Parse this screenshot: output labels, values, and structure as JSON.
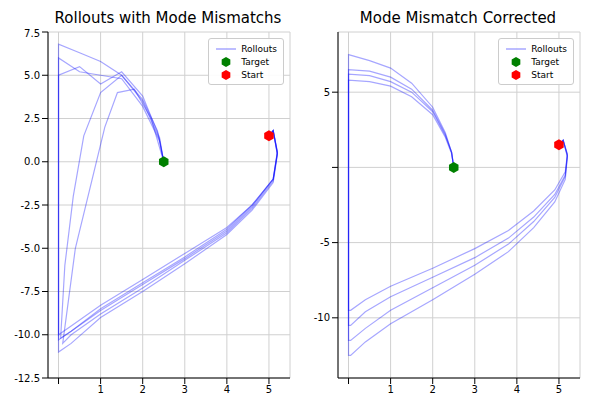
{
  "chart_data": [
    {
      "type": "line",
      "title": "Rollouts with Mode Mismatchs",
      "xlim": [
        -0.25,
        5.5
      ],
      "xticks": [
        0,
        1,
        2,
        3,
        4,
        5
      ],
      "ylim": [
        -12.5,
        7.5
      ],
      "yticks": [
        {
          "value": -12.5,
          "label": "-12.5"
        },
        {
          "value": -10,
          "label": "-10.0"
        },
        {
          "value": -7.5,
          "label": "-7.5"
        },
        {
          "value": -5,
          "label": "-5.0"
        },
        {
          "value": -2.5,
          "label": "-2.5"
        },
        {
          "value": 0,
          "label": "0.0"
        },
        {
          "value": 2.5,
          "label": "2.5"
        },
        {
          "value": 5,
          "label": "5.0"
        },
        {
          "value": 7.5,
          "label": "7.5"
        }
      ],
      "grid": true,
      "legend": "upper right",
      "series": [
        {
          "name": "Rollouts",
          "type": "line",
          "color": "#0000ff",
          "rollouts": [
            {
              "x": [
                5,
                5.1,
                5.2,
                5.1,
                4.6,
                4,
                3,
                2,
                1,
                0.3,
                0,
                0,
                0,
                0,
                0.5,
                1,
                1.5,
                2,
                2.35,
                2.5
              ],
              "values": [
                1.5,
                1.8,
                0.5,
                -1,
                -2.5,
                -3.8,
                -5.3,
                -6.8,
                -8.3,
                -9.5,
                -10,
                -3,
                3,
                6.8,
                6.3,
                5.8,
                5,
                3.6,
                1.8,
                0
              ]
            },
            {
              "x": [
                5,
                5.1,
                5.2,
                5.1,
                4.6,
                4,
                3,
                2,
                1,
                0.3,
                0,
                0,
                0.5,
                1,
                1.5,
                2,
                2.4,
                2.5
              ],
              "values": [
                1.5,
                1.8,
                0.4,
                -1.2,
                -2.8,
                -4.2,
                -5.9,
                -7.5,
                -9,
                -10.5,
                -11,
                6,
                5.2,
                5,
                4.8,
                3.2,
                1.2,
                0
              ]
            },
            {
              "x": [
                5,
                5.1,
                5.2,
                5.1,
                4.6,
                4,
                3,
                2,
                1,
                0.3,
                0.05,
                0.15,
                0.35,
                0.6,
                1,
                1.5,
                2,
                2.4,
                2.5
              ],
              "values": [
                1.5,
                1.8,
                0.6,
                -1,
                -2.6,
                -4,
                -5.6,
                -7.1,
                -8.6,
                -9.8,
                -10.2,
                -6,
                -2,
                1.5,
                4,
                5,
                3.5,
                1.3,
                0
              ]
            },
            {
              "x": [
                5,
                5.1,
                5.2,
                5.1,
                4.6,
                4,
                3,
                2,
                1,
                0.3,
                0.1,
                0.4,
                0.8,
                1.1,
                1.4,
                1.8,
                2.2,
                2.5
              ],
              "values": [
                1.5,
                1.8,
                0.5,
                -1.1,
                -2.7,
                -4.1,
                -5.7,
                -7.3,
                -8.8,
                -10,
                -10.5,
                -5,
                -1,
                2,
                4,
                4.2,
                2.5,
                0
              ]
            },
            {
              "x": [
                5,
                5.1,
                5.2,
                5.1,
                4.6,
                4,
                3,
                2,
                1,
                0.3,
                0,
                0,
                0.5,
                1,
                1.5,
                2,
                2.4,
                2.5
              ],
              "values": [
                1.5,
                1.8,
                0.5,
                -1,
                -2.5,
                -3.9,
                -5.5,
                -7,
                -8.5,
                -9.8,
                -10.3,
                5,
                5.5,
                4.5,
                5.2,
                3.8,
                1.4,
                0
              ]
            }
          ]
        },
        {
          "name": "Target",
          "type": "scatter",
          "marker": "hexagon",
          "color": "#008000",
          "x": [
            2.5
          ],
          "values": [
            0
          ]
        },
        {
          "name": "Start",
          "type": "scatter",
          "marker": "hexagon",
          "color": "#ff0000",
          "x": [
            5
          ],
          "values": [
            1.5
          ]
        }
      ]
    },
    {
      "type": "line",
      "title": "Mode Mismatch Corrected",
      "xlim": [
        -0.25,
        5.5
      ],
      "xticks": [
        0,
        1,
        2,
        3,
        4,
        5
      ],
      "ylim": [
        -14,
        9
      ],
      "yticks": [
        -10,
        -5,
        0,
        5
      ],
      "grid": true,
      "legend": "upper right",
      "series": [
        {
          "name": "Rollouts",
          "type": "line",
          "color": "#0000ff",
          "rollouts": [
            {
              "x": [
                5,
                5.1,
                5.2,
                5.15,
                4.9,
                4.4,
                3.8,
                3,
                2,
                1,
                0.4,
                0.05,
                0,
                0,
                0.5,
                1,
                1.5,
                2,
                2.3,
                2.45,
                2.5
              ],
              "values": [
                1.5,
                1.8,
                0.8,
                -0.5,
                -1.8,
                -3.3,
                -4.7,
                -6,
                -7.3,
                -8.6,
                -9.6,
                -10.5,
                -10.5,
                6.5,
                6.4,
                6,
                5.2,
                3.8,
                2.2,
                1,
                0
              ]
            },
            {
              "x": [
                5,
                5.1,
                5.2,
                5.15,
                4.9,
                4.4,
                3.8,
                3,
                2,
                1,
                0.4,
                0.05,
                0,
                0,
                0.5,
                1,
                1.5,
                2,
                2.3,
                2.45,
                2.5
              ],
              "values": [
                1.5,
                1.8,
                0.7,
                -0.8,
                -2.3,
                -4,
                -5.6,
                -7.1,
                -8.8,
                -10.4,
                -11.6,
                -12.5,
                -12.5,
                7.5,
                7.1,
                6.6,
                5.6,
                4,
                2.3,
                1,
                0
              ]
            },
            {
              "x": [
                5,
                5.1,
                5.2,
                5.15,
                4.9,
                4.4,
                3.8,
                3,
                2,
                1,
                0.4,
                0.05,
                0,
                0,
                0.5,
                1,
                1.5,
                2,
                2.3,
                2.45,
                2.5
              ],
              "values": [
                1.5,
                1.8,
                0.9,
                -0.3,
                -1.5,
                -2.9,
                -4.2,
                -5.4,
                -6.7,
                -7.9,
                -8.8,
                -9.5,
                -9.5,
                5.8,
                5.7,
                5.4,
                4.7,
                3.5,
                2,
                0.9,
                0
              ]
            },
            {
              "x": [
                5,
                5.1,
                5.2,
                5.15,
                4.9,
                4.4,
                3.8,
                3,
                2,
                1,
                0.4,
                0.05,
                0,
                0,
                0.5,
                1,
                1.5,
                2,
                2.3,
                2.45,
                2.5
              ],
              "values": [
                1.5,
                1.8,
                0.8,
                -0.6,
                -2,
                -3.6,
                -5.1,
                -6.5,
                -8,
                -9.5,
                -10.7,
                -11.5,
                -11.5,
                6.2,
                6.1,
                5.7,
                5,
                3.7,
                2.1,
                1,
                0
              ]
            }
          ]
        },
        {
          "name": "Target",
          "type": "scatter",
          "marker": "hexagon",
          "color": "#008000",
          "x": [
            2.5
          ],
          "values": [
            0
          ]
        },
        {
          "name": "Start",
          "type": "scatter",
          "marker": "hexagon",
          "color": "#ff0000",
          "x": [
            5
          ],
          "values": [
            1.5
          ]
        }
      ]
    }
  ]
}
